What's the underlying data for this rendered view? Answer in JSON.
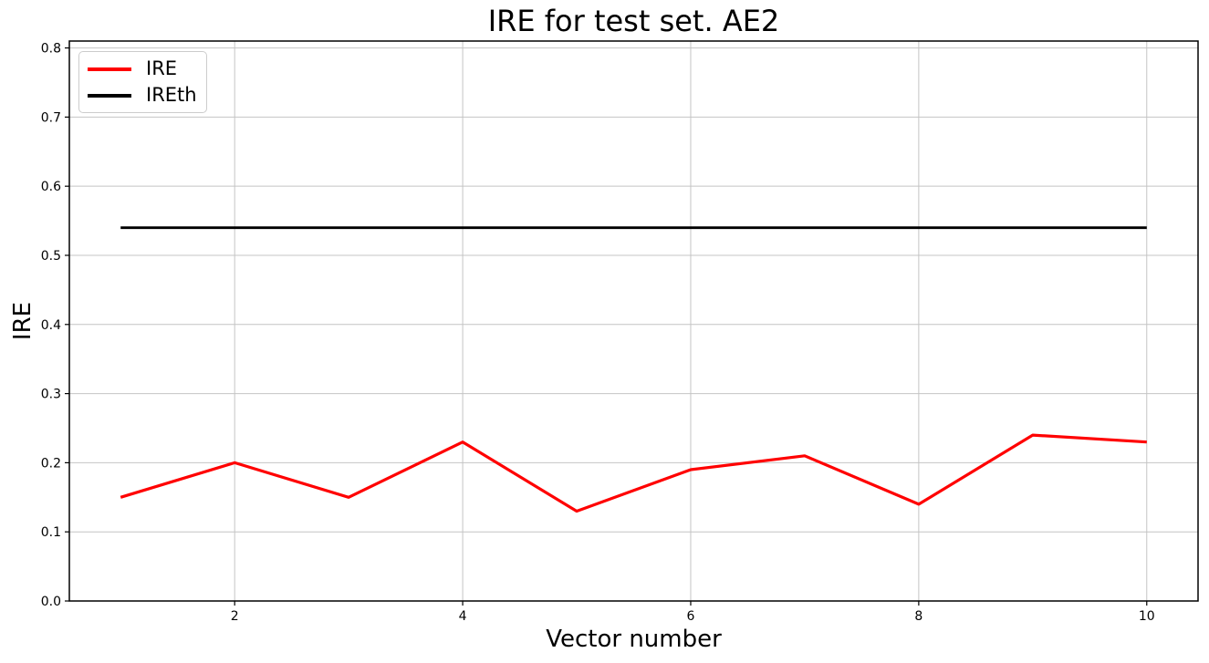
{
  "figure": {
    "title": "IRE for test set. AE2",
    "xlabel": "Vector number",
    "ylabel": "IRE"
  },
  "legend": {
    "items": [
      {
        "label": "IRE",
        "color": "#ff0000"
      },
      {
        "label": "IREth",
        "color": "#000000"
      }
    ]
  },
  "chart_data": {
    "type": "line",
    "title": "IRE for test set. AE2",
    "xlabel": "Vector number",
    "ylabel": "IRE",
    "x": [
      1,
      2,
      3,
      4,
      5,
      6,
      7,
      8,
      9,
      10
    ],
    "series": [
      {
        "name": "IRE",
        "color": "#ff0000",
        "line_width": 3.2,
        "values": [
          0.15,
          0.2,
          0.15,
          0.23,
          0.13,
          0.19,
          0.21,
          0.14,
          0.24,
          0.23
        ]
      },
      {
        "name": "IREth",
        "color": "#000000",
        "line_width": 2.8,
        "values": [
          0.54,
          0.54,
          0.54,
          0.54,
          0.54,
          0.54,
          0.54,
          0.54,
          0.54,
          0.54
        ]
      }
    ],
    "xlim": [
      0.55,
      10.45
    ],
    "ylim": [
      0.0,
      0.81
    ],
    "xticks": [
      2,
      4,
      6,
      8,
      10
    ],
    "yticks": [
      0.0,
      0.1,
      0.2,
      0.3,
      0.4,
      0.5,
      0.6,
      0.7,
      0.8
    ],
    "grid": true,
    "grid_color": "#c4c4c4",
    "spine_color": "#000000",
    "tick_label_color": "#000000",
    "legend_position": "upper left"
  }
}
